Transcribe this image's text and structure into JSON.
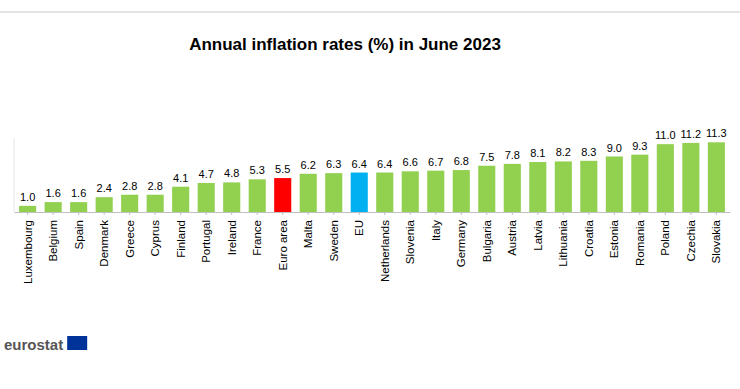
{
  "chart_data": {
    "type": "bar",
    "title": "Annual inflation rates (%) in June 2023",
    "categories": [
      "Luxembourg",
      "Belgium",
      "Spain",
      "Denmark",
      "Greece",
      "Cyprus",
      "Finland",
      "Portugal",
      "Ireland",
      "France",
      "Euro area",
      "Malta",
      "Sweden",
      "EU",
      "Netherlands",
      "Slovenia",
      "Italy",
      "Germany",
      "Bulgaria",
      "Austria",
      "Latvia",
      "Lithuania",
      "Croatia",
      "Estonia",
      "Romania",
      "Poland",
      "Czechia",
      "Slovakia"
    ],
    "values": [
      1.0,
      1.6,
      1.6,
      2.4,
      2.8,
      2.8,
      4.1,
      4.7,
      4.8,
      5.3,
      5.5,
      6.2,
      6.3,
      6.4,
      6.4,
      6.6,
      6.7,
      6.8,
      7.5,
      7.8,
      8.1,
      8.2,
      8.3,
      9.0,
      9.3,
      11.0,
      11.2,
      11.3
    ],
    "value_labels": [
      "1.0",
      "1.6",
      "1.6",
      "2.4",
      "2.8",
      "2.8",
      "4.1",
      "4.7",
      "4.8",
      "5.3",
      "5.5",
      "6.2",
      "6.3",
      "6.4",
      "6.4",
      "6.6",
      "6.7",
      "6.8",
      "7.5",
      "7.8",
      "8.1",
      "8.2",
      "8.3",
      "9.0",
      "9.3",
      "11.0",
      "11.2",
      "11.3"
    ],
    "colors": [
      "#92d050",
      "#92d050",
      "#92d050",
      "#92d050",
      "#92d050",
      "#92d050",
      "#92d050",
      "#92d050",
      "#92d050",
      "#92d050",
      "#ff0000",
      "#92d050",
      "#92d050",
      "#00b0f0",
      "#92d050",
      "#92d050",
      "#92d050",
      "#92d050",
      "#92d050",
      "#92d050",
      "#92d050",
      "#92d050",
      "#92d050",
      "#92d050",
      "#92d050",
      "#92d050",
      "#92d050",
      "#92d050"
    ],
    "ylim": [
      0,
      12
    ],
    "data_labels": true,
    "tick_labels": "x",
    "annotations": [
      "eurostat"
    ]
  }
}
